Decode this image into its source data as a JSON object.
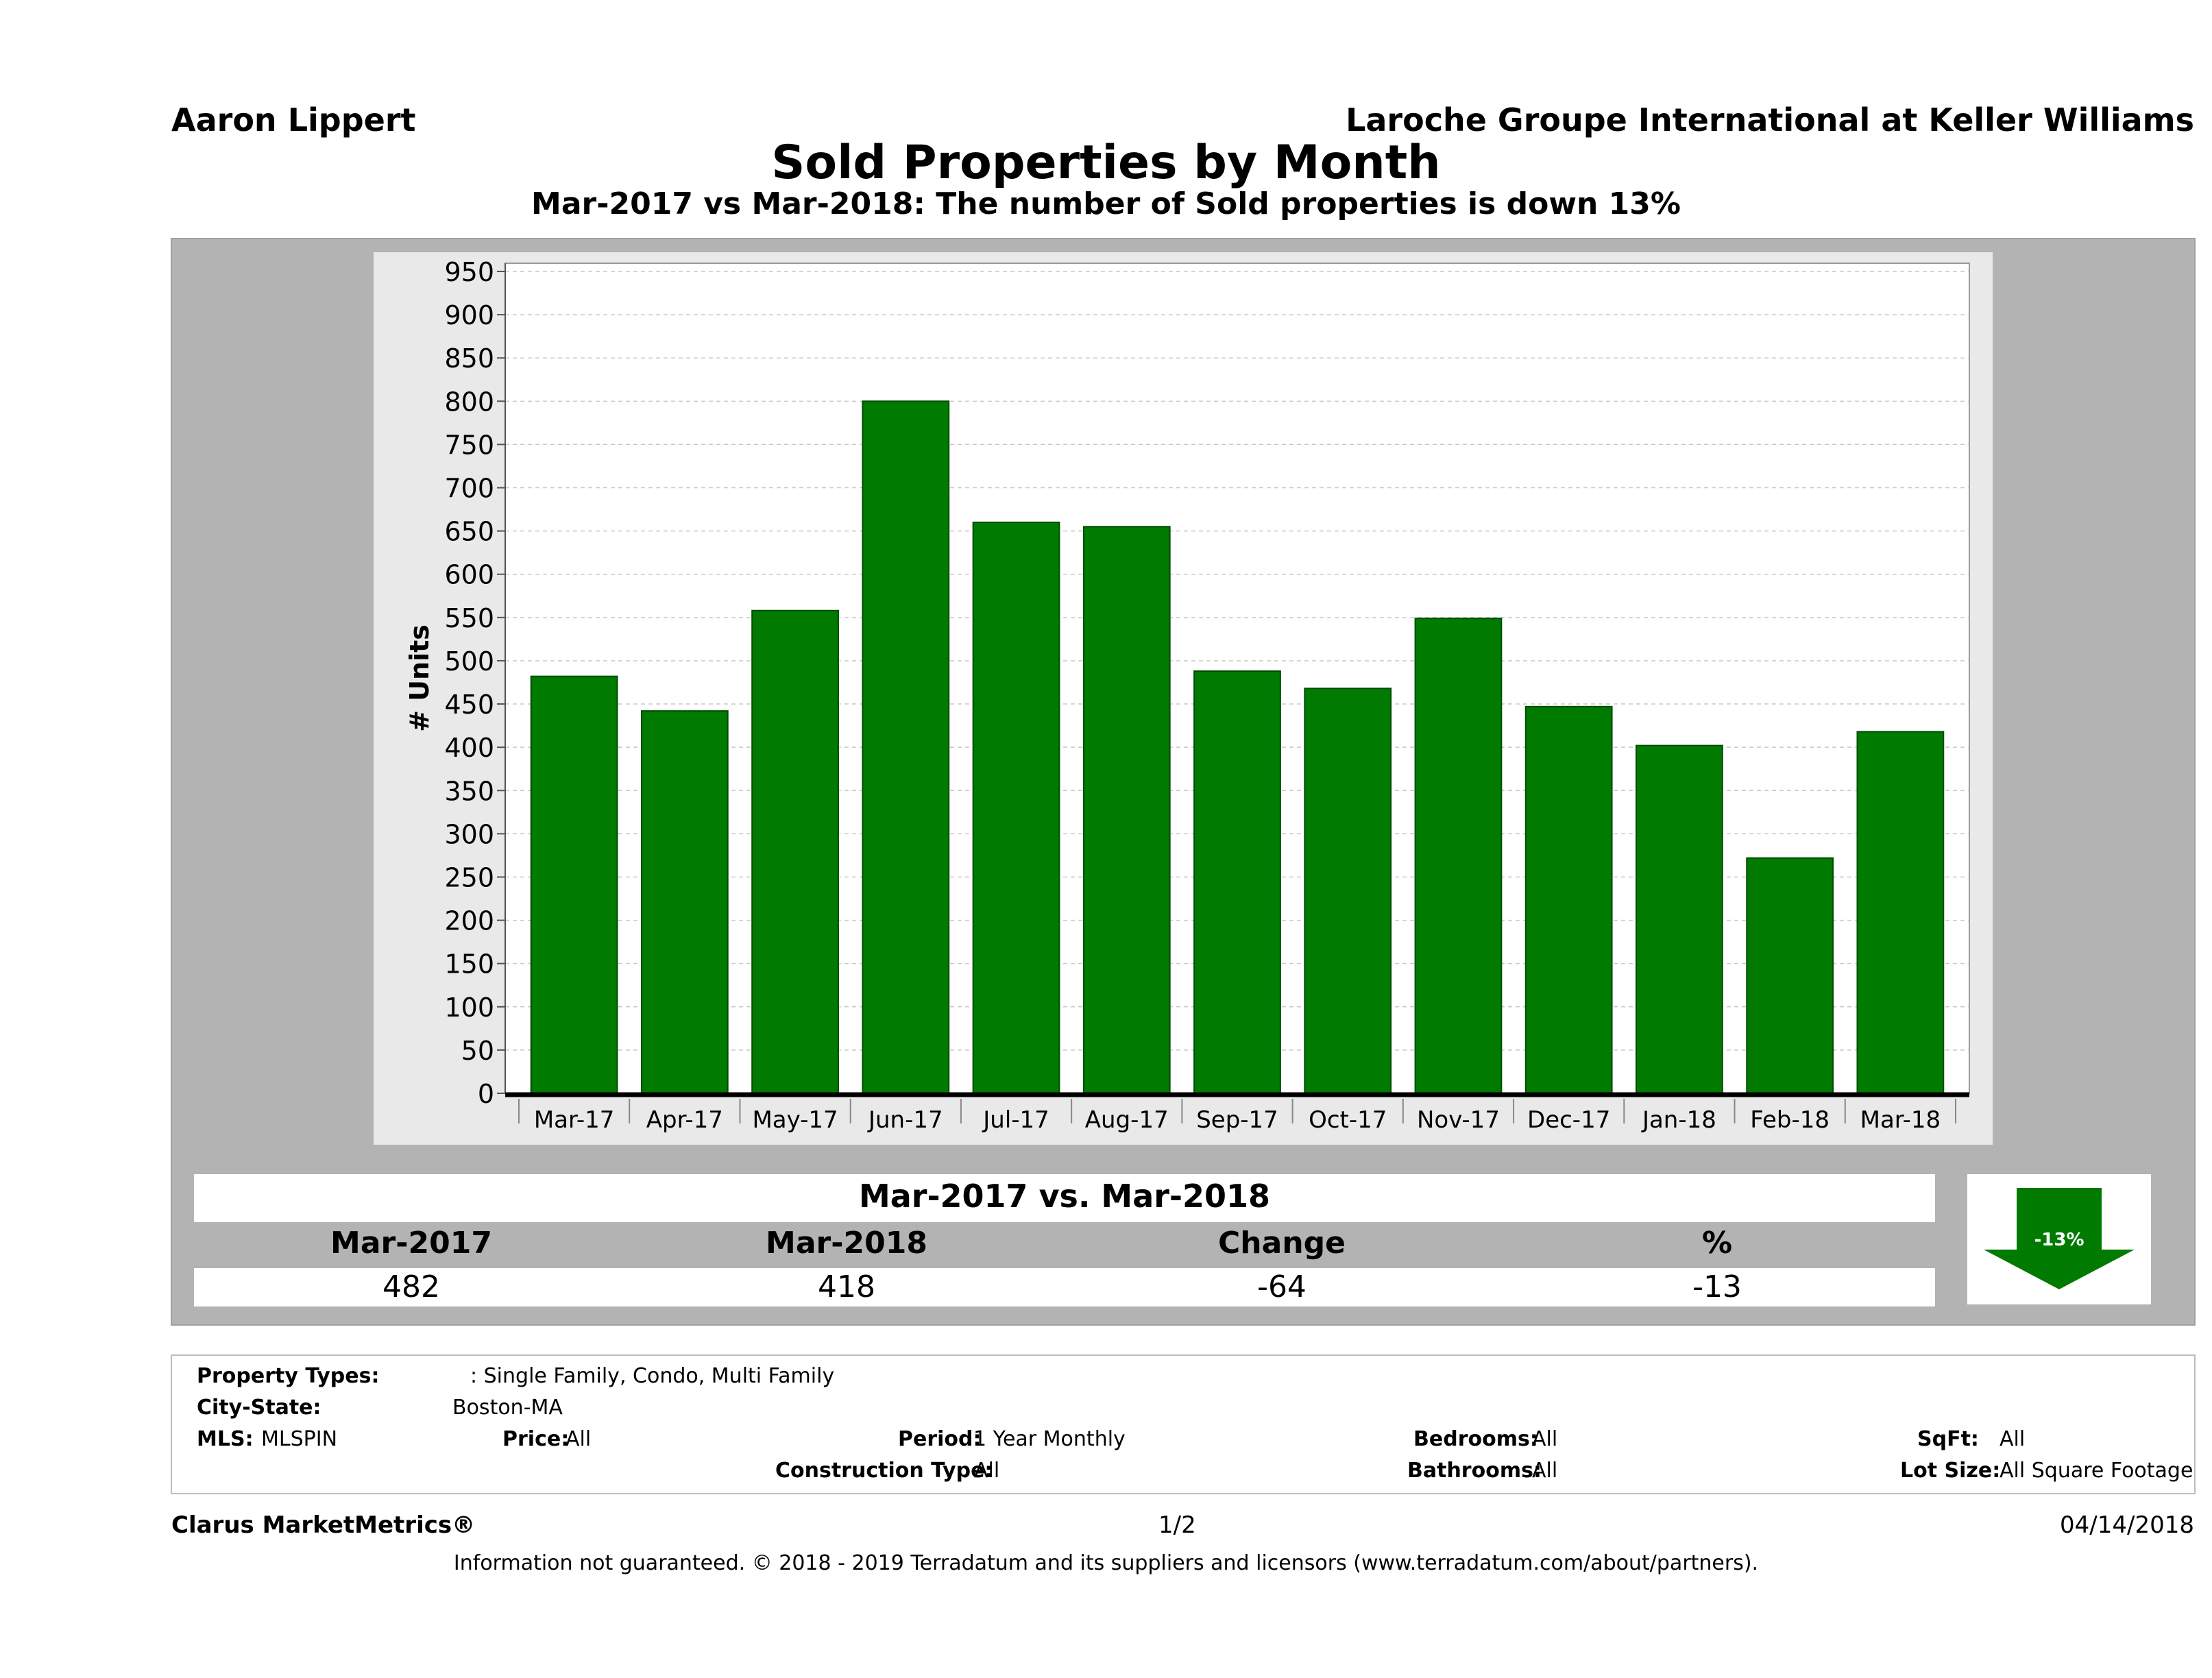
{
  "header": {
    "agent": "Aaron Lippert",
    "company": "Laroche Groupe International at Keller Williams",
    "title": "Sold Properties by Month",
    "subtitle": "Mar-2017 vs Mar-2018: The number of Sold  properties is down 13%"
  },
  "chart_data": {
    "type": "bar",
    "title": "Sold Properties by Month",
    "subtitle": "Mar-2017 vs Mar-2018: The number of Sold  properties is down 13%",
    "ylabel": "# Units",
    "xlabel": "",
    "ylim": [
      0,
      950
    ],
    "yticks": [
      "0",
      "50",
      "100",
      "150",
      "200",
      "250",
      "300",
      "350",
      "400",
      "450",
      "500",
      "550",
      "600",
      "650",
      "700",
      "750",
      "800",
      "850",
      "900",
      "950"
    ],
    "categories": [
      "Mar-17",
      "Apr-17",
      "May-17",
      "Jun-17",
      "Jul-17",
      "Aug-17",
      "Sep-17",
      "Oct-17",
      "Nov-17",
      "Dec-17",
      "Jan-18",
      "Feb-18",
      "Mar-18"
    ],
    "values": [
      482,
      442,
      558,
      800,
      660,
      655,
      488,
      468,
      549,
      447,
      402,
      272,
      418
    ],
    "bar_color": "#007a00",
    "grid": true,
    "legend": "none"
  },
  "comparison": {
    "title": "Mar-2017 vs. Mar-2018",
    "headers": [
      "Mar-2017",
      "Mar-2018",
      "Change",
      "%"
    ],
    "values": [
      "482",
      "418",
      "-64",
      "-13"
    ],
    "badge": "-13%",
    "badge_color": "#007a00"
  },
  "filters": {
    "property_types_label": "Property Types:",
    "property_types_value": ": Single Family, Condo, Multi Family",
    "city_state_label": "City-State:",
    "city_state_value": "Boston-MA",
    "mls_label": "MLS:",
    "mls_value": "MLSPIN",
    "price_label": "Price:",
    "price_value": "All",
    "period_label": "Period:",
    "period_value": "1 Year Monthly",
    "construction_label": "Construction Type:",
    "construction_value": "All",
    "bedrooms_label": "Bedrooms:",
    "bedrooms_value": "All",
    "bathrooms_label": "Bathrooms:",
    "bathrooms_value": "All",
    "sqft_label": "SqFt:",
    "sqft_value": "All",
    "lotsize_label": "Lot Size:",
    "lotsize_value": "All Square Footage"
  },
  "footer": {
    "brand": "Clarus MarketMetrics®",
    "page": "1/2",
    "date": "04/14/2018",
    "disclaimer": "Information not guaranteed. © 2018 - 2019 Terradatum and its suppliers and licensors (www.terradatum.com/about/partners)."
  }
}
